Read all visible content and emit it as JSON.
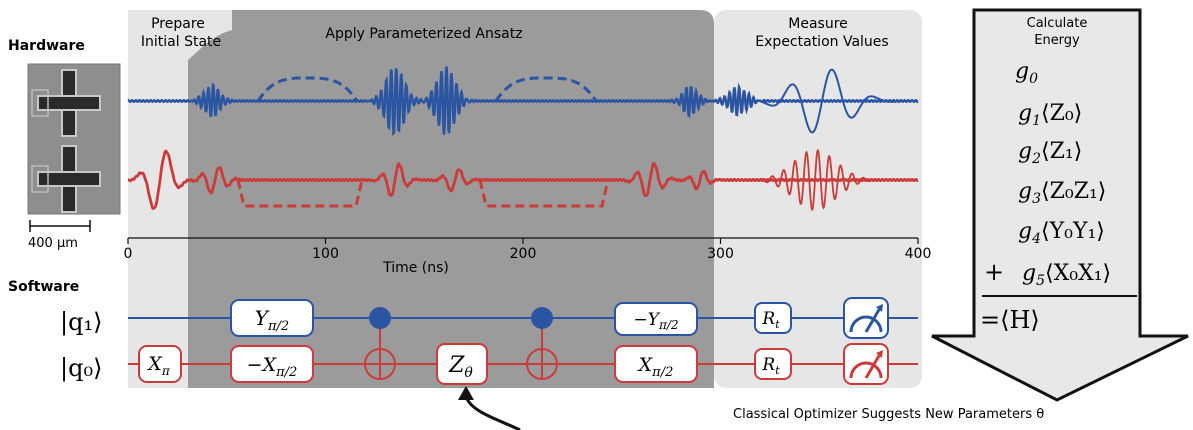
{
  "labels": {
    "hardware": "Hardware",
    "software": "Software",
    "scale_bar": "400 µm",
    "prepare_line1": "Prepare",
    "prepare_line2": "Initial State",
    "ansatz": "Apply Parameterized Ansatz",
    "measure_line1": "Measure",
    "measure_line2": "Expectation Values",
    "calc_line1": "Calculate",
    "calc_line2": "Energy",
    "optimizer": "Classical Optimizer Suggests New Parameters θ"
  },
  "time_axis": {
    "label": "Time (ns)",
    "ticks": [
      {
        "value": 0,
        "label": "0"
      },
      {
        "value": 100,
        "label": "100"
      },
      {
        "value": 200,
        "label": "200"
      },
      {
        "value": 300,
        "label": "300"
      },
      {
        "value": 400,
        "label": "400"
      }
    ]
  },
  "qubits": [
    {
      "id": "q1",
      "label": "|q₁⟩",
      "color": "#2b55a3"
    },
    {
      "id": "q0",
      "label": "|q₀⟩",
      "color": "#cc3a3a"
    }
  ],
  "gates": {
    "q1": [
      {
        "label": "Y",
        "sub": "π/2"
      },
      {
        "label": "−Y",
        "sub": "π/2"
      },
      {
        "label": "R",
        "sub": "t"
      }
    ],
    "q0": [
      {
        "label": "X",
        "sub": "π"
      },
      {
        "label": "−X",
        "sub": "π/2"
      },
      {
        "label": "Z",
        "sub": "θ"
      },
      {
        "label": "X",
        "sub": "π/2"
      },
      {
        "label": "R",
        "sub": "t"
      }
    ]
  },
  "energy_terms": [
    {
      "coef": "g",
      "idx": "0",
      "term": ""
    },
    {
      "coef": "g",
      "idx": "1",
      "term": "⟨Z₀⟩"
    },
    {
      "coef": "g",
      "idx": "2",
      "term": "⟨Z₁⟩"
    },
    {
      "coef": "g",
      "idx": "3",
      "term": "⟨Z₀Z₁⟩"
    },
    {
      "coef": "g",
      "idx": "4",
      "term": "⟨Y₀Y₁⟩"
    },
    {
      "coef": "g",
      "idx": "5",
      "term": "⟨X₀X₁⟩",
      "prefix": "+"
    }
  ],
  "energy_result": "=⟨H⟩",
  "colors": {
    "blue": "#2b55a3",
    "red": "#cc3a3a",
    "ansatz_bg": "#9b9b9b",
    "panel_bg": "#e6e6e6",
    "arrow_bg": "#e8e8e8"
  }
}
